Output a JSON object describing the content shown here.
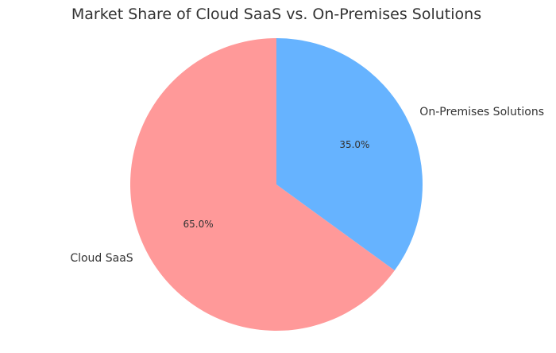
{
  "chart_data": {
    "type": "pie",
    "title": "Market Share of Cloud SaaS vs. On-Premises Solutions",
    "slices": [
      {
        "label": "Cloud SaaS",
        "value": 65.0,
        "pct_label": "65.0%",
        "color": "#ff9999"
      },
      {
        "label": "On-Premises Solutions",
        "value": 35.0,
        "pct_label": "35.0%",
        "color": "#66b3ff"
      }
    ],
    "start_angle_deg": 90,
    "counterclockwise": true,
    "legend": "none"
  }
}
